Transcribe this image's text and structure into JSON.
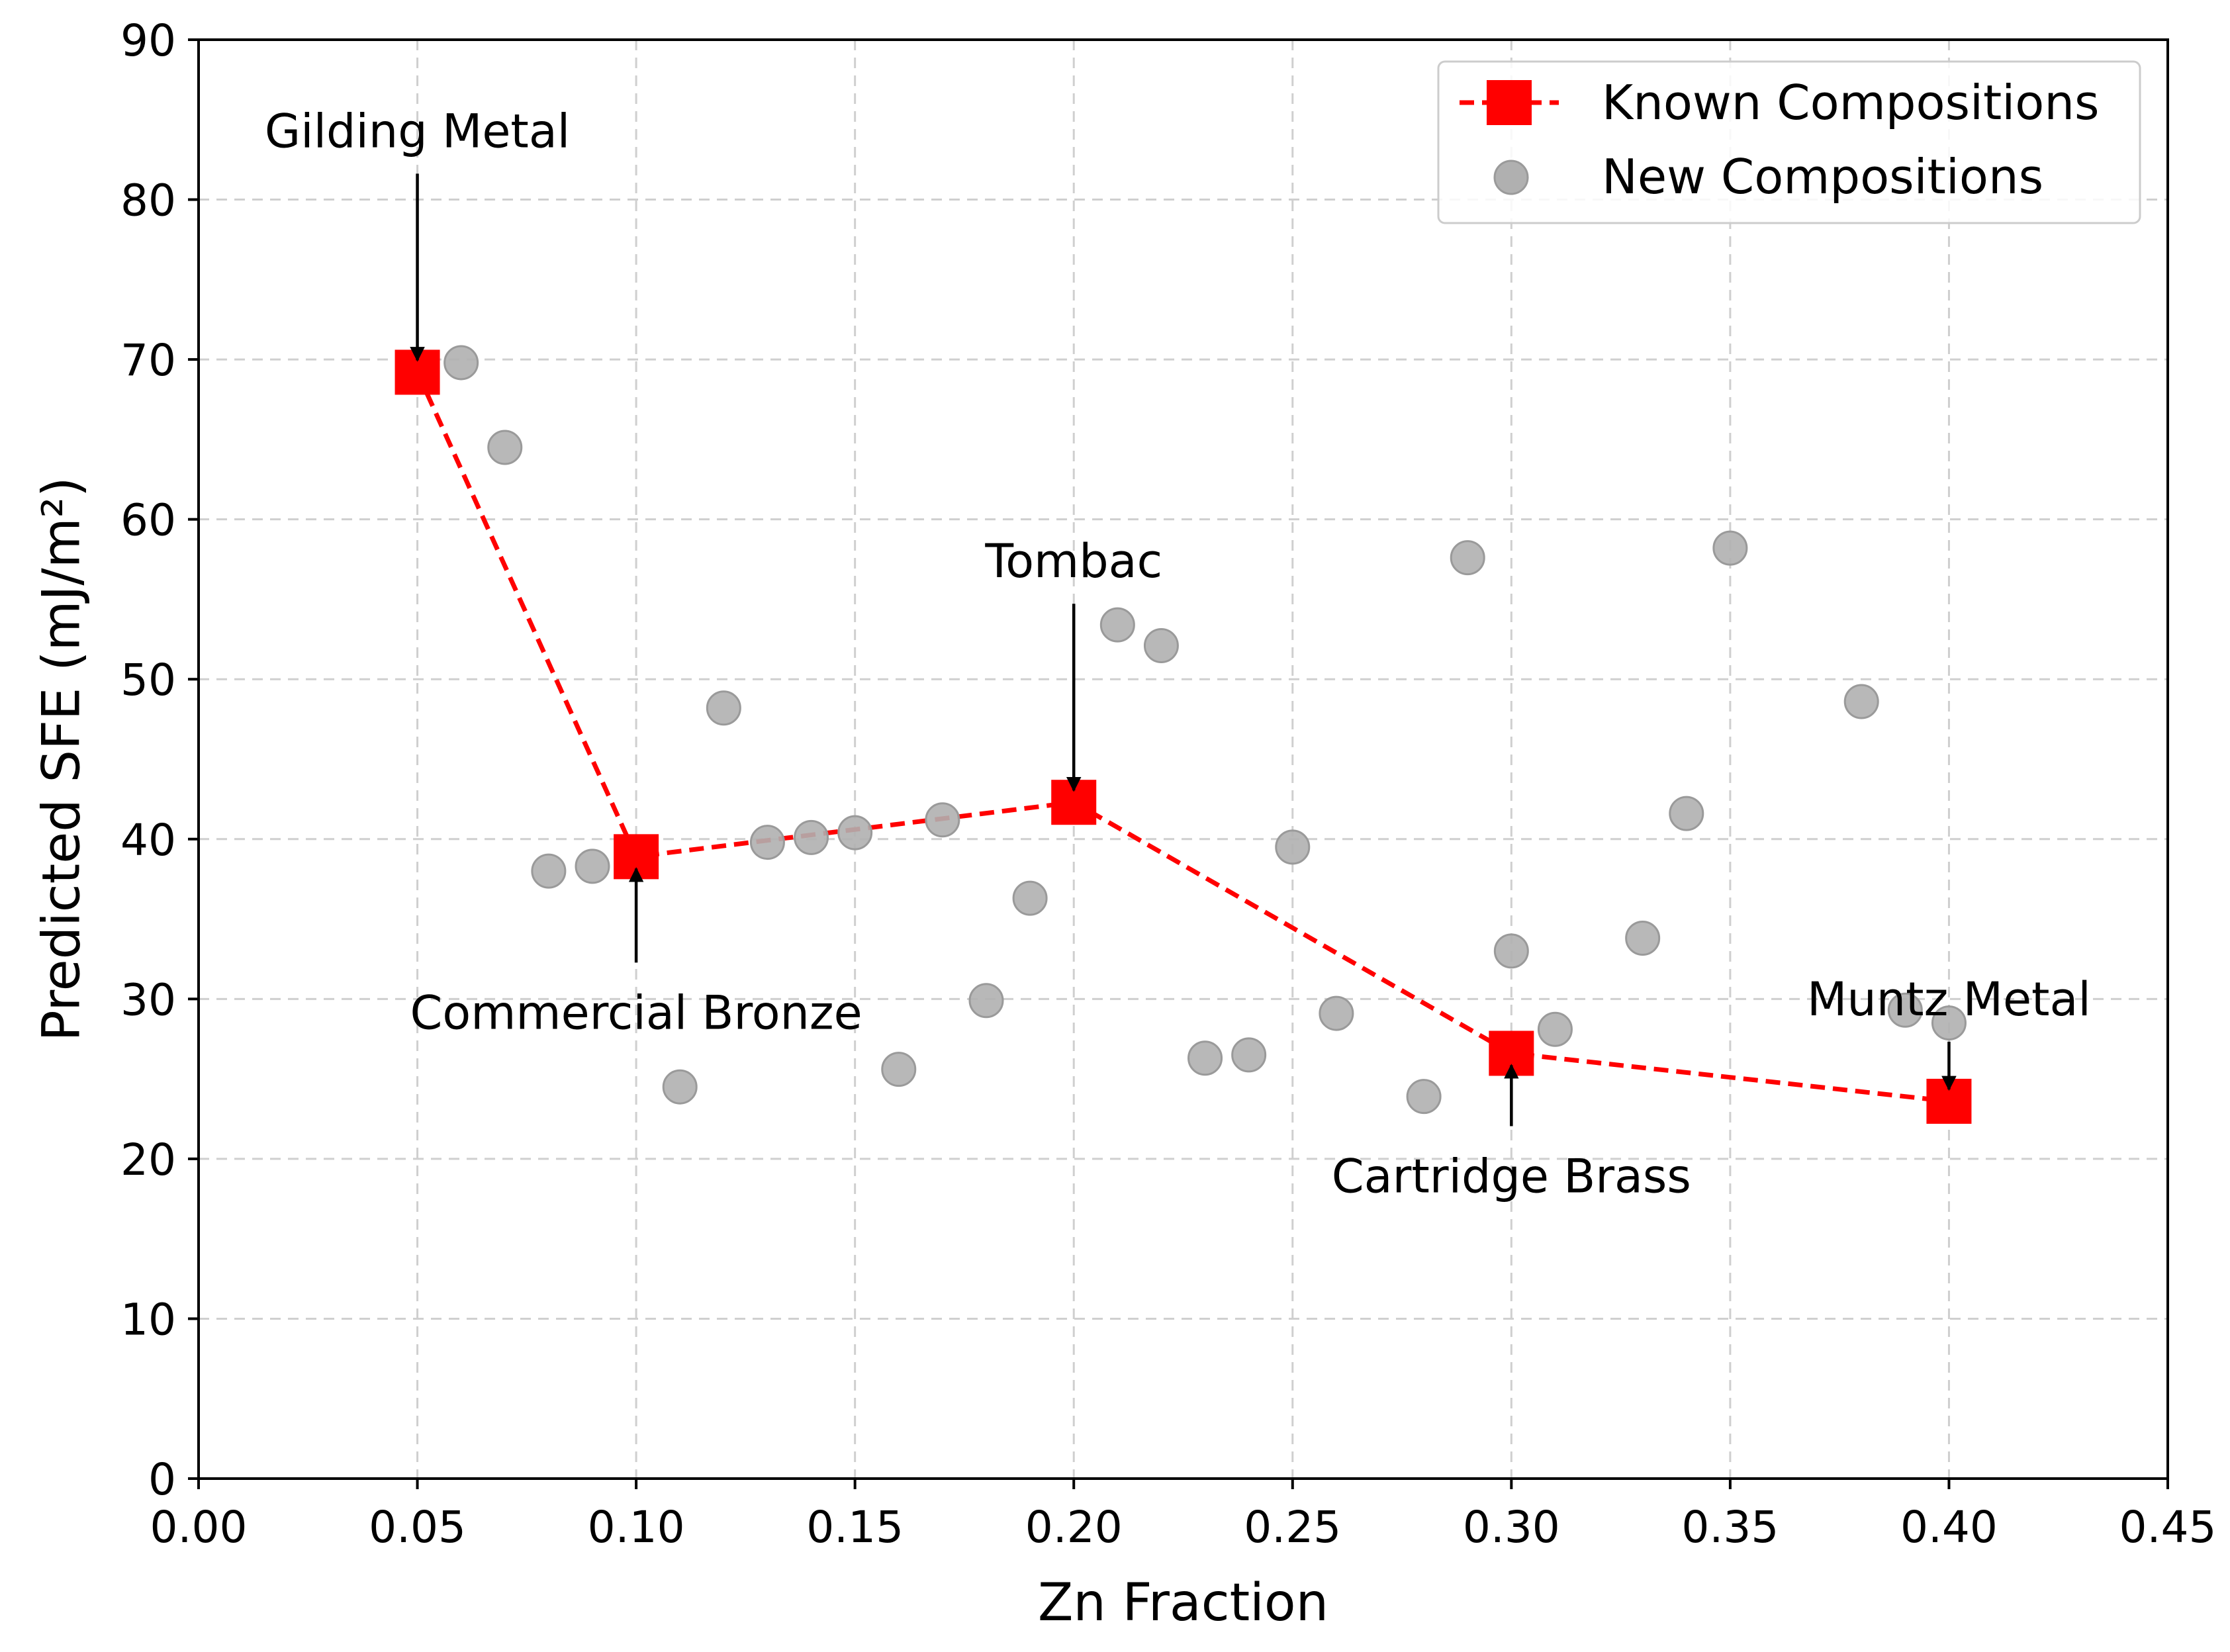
{
  "chart_data": {
    "type": "scatter",
    "title": "",
    "xlabel": "Zn Fraction",
    "ylabel": "Predicted SFE (mJ/m²)",
    "xlim": [
      0.0,
      0.45
    ],
    "ylim": [
      0,
      90
    ],
    "grid": true,
    "x_ticks": [
      0.0,
      0.05,
      0.1,
      0.15,
      0.2,
      0.25,
      0.3,
      0.35,
      0.4,
      0.45
    ],
    "x_tick_labels": [
      "0.00",
      "0.05",
      "0.10",
      "0.15",
      "0.20",
      "0.25",
      "0.30",
      "0.35",
      "0.40",
      "0.45"
    ],
    "y_ticks": [
      0,
      10,
      20,
      30,
      40,
      50,
      60,
      70,
      80,
      90
    ],
    "y_tick_labels": [
      "0",
      "10",
      "20",
      "30",
      "40",
      "50",
      "60",
      "70",
      "80",
      "90"
    ],
    "legend_position": "top-right",
    "series": [
      {
        "name": "Known Compositions",
        "style": "line-dashed-square-markers",
        "color": "#ff0000",
        "x": [
          0.05,
          0.1,
          0.2,
          0.3,
          0.4
        ],
        "y": [
          69.2,
          38.9,
          42.3,
          26.6,
          23.6
        ]
      },
      {
        "name": "New Compositions",
        "style": "scatter-circle",
        "color": "#b0b0b0",
        "x": [
          0.06,
          0.07,
          0.08,
          0.09,
          0.11,
          0.12,
          0.13,
          0.14,
          0.15,
          0.16,
          0.17,
          0.18,
          0.19,
          0.21,
          0.22,
          0.23,
          0.24,
          0.25,
          0.26,
          0.28,
          0.29,
          0.3,
          0.31,
          0.33,
          0.34,
          0.35,
          0.38,
          0.39,
          0.4
        ],
        "y": [
          69.8,
          64.5,
          38.0,
          38.3,
          24.5,
          48.2,
          39.8,
          40.1,
          40.4,
          25.6,
          41.2,
          29.9,
          36.3,
          53.4,
          52.1,
          26.3,
          26.5,
          39.5,
          29.1,
          23.9,
          57.6,
          33.0,
          28.1,
          33.8,
          41.6,
          58.2,
          48.6,
          29.3,
          28.5
        ]
      }
    ],
    "annotations": [
      {
        "text": "Gilding Metal",
        "x": 0.05,
        "y": 69.2,
        "arrow_from": "above"
      },
      {
        "text": "Commercial Bronze",
        "x": 0.1,
        "y": 38.9,
        "arrow_from": "below"
      },
      {
        "text": "Tombac",
        "x": 0.2,
        "y": 42.3,
        "arrow_from": "above"
      },
      {
        "text": "Cartridge Brass",
        "x": 0.3,
        "y": 26.6,
        "arrow_from": "below"
      },
      {
        "text": "Muntz Metal",
        "x": 0.4,
        "y": 23.6,
        "arrow_from": "above"
      }
    ]
  }
}
